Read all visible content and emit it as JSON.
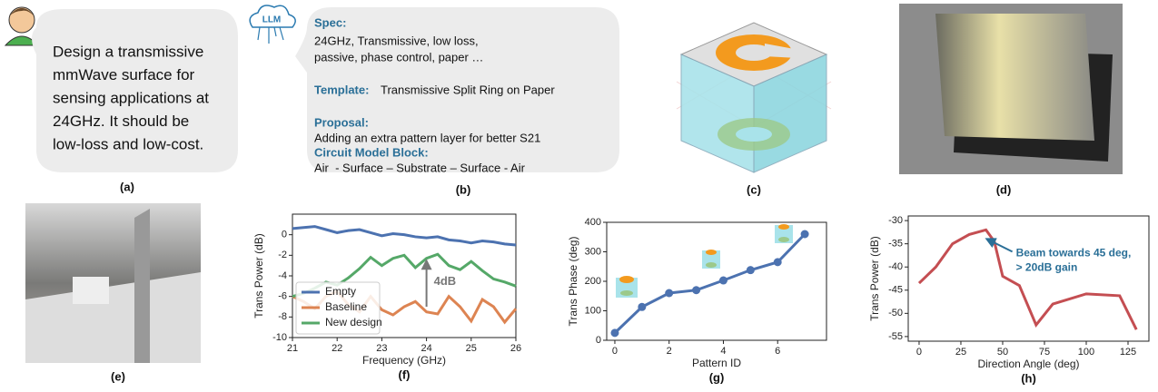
{
  "panel_a": {
    "text": [
      "Design a transmissive",
      "mmWave surface for",
      "sensing applications at",
      "24GHz. It should be",
      "low-loss and low-cost."
    ],
    "label": "(a)"
  },
  "llm_icon": "LLM",
  "panel_b": {
    "spec_heading": "Spec:",
    "spec": [
      "24GHz, Transmissive, low loss,",
      "passive, phase control, paper …"
    ],
    "template_heading": "Template:",
    "template": "Transmissive Split Ring on Paper",
    "proposal_heading": "Proposal:",
    "proposal": "Adding an extra pattern layer for better S21",
    "circuit_heading": "Circuit Model Block:",
    "circuit": "Air  - Surface – Substrate – Surface - Air",
    "label": "(b)"
  },
  "panel_c": {
    "label": "(c)"
  },
  "panel_d": {
    "label": "(d)"
  },
  "panel_e": {
    "label": "(e)"
  },
  "chart_data": [
    {
      "type": "line",
      "label": "(f)",
      "xlabel": "Frequency (GHz)",
      "ylabel": "Trans Power (dB)",
      "x": [
        21,
        21.25,
        21.5,
        21.75,
        22,
        22.25,
        22.5,
        22.75,
        23,
        23.25,
        23.5,
        23.75,
        24,
        24.25,
        24.5,
        24.75,
        25,
        25.25,
        25.5,
        25.75,
        26
      ],
      "series": [
        {
          "name": "Empty",
          "color": "#4c72b0",
          "values": [
            0.6,
            0.7,
            0.8,
            0.5,
            0.2,
            0.4,
            0.5,
            0.2,
            -0.1,
            0.1,
            0.0,
            -0.2,
            -0.3,
            -0.2,
            -0.5,
            -0.6,
            -0.8,
            -0.6,
            -0.7,
            -0.9,
            -1.0
          ]
        },
        {
          "name": "Baseline",
          "color": "#dd8452",
          "values": [
            -6.0,
            -6.5,
            -7.2,
            -6.0,
            -5.5,
            -6.8,
            -7.5,
            -6.0,
            -7.3,
            -7.8,
            -7.0,
            -6.5,
            -7.5,
            -7.7,
            -6.0,
            -7.0,
            -8.4,
            -6.3,
            -7.0,
            -8.5,
            -7.2
          ]
        },
        {
          "name": "New design",
          "color": "#55a868",
          "values": [
            -6.0,
            -5.7,
            -5.2,
            -4.6,
            -4.9,
            -4.2,
            -3.3,
            -2.2,
            -3.0,
            -2.3,
            -2.0,
            -3.2,
            -2.3,
            -1.9,
            -3.0,
            -3.4,
            -2.6,
            -3.5,
            -4.3,
            -4.6,
            -5.0
          ]
        }
      ],
      "xlim": [
        21,
        26
      ],
      "ylim": [
        -10,
        2
      ],
      "xticks": [
        21,
        22,
        23,
        24,
        25,
        26
      ],
      "yticks": [
        0,
        -2,
        -4,
        -6,
        -8,
        -10
      ],
      "legend": "lower left",
      "annotation": "4dB"
    },
    {
      "type": "line",
      "label": "(g)",
      "xlabel": "Pattern ID",
      "ylabel": "Trans Phase (deg)",
      "markers": true,
      "x": [
        0,
        1,
        2,
        3,
        4,
        5,
        6,
        7
      ],
      "series": [
        {
          "color": "#4c72b0",
          "values": [
            25,
            113,
            160,
            170,
            203,
            238,
            265,
            360
          ]
        }
      ],
      "xlim": [
        -0.3,
        7.8
      ],
      "ylim": [
        0,
        400
      ],
      "xticks": [
        0,
        2,
        4,
        6
      ],
      "yticks": [
        0,
        100,
        200,
        300,
        400
      ]
    },
    {
      "type": "line",
      "label": "(h)",
      "xlabel": "Direction Angle (deg)",
      "ylabel": "Trans Power (dB)",
      "x": [
        0,
        10,
        20,
        30,
        40,
        45,
        50,
        60,
        70,
        80,
        100,
        120,
        130
      ],
      "series": [
        {
          "color": "#c44e52",
          "values": [
            -43.5,
            -40,
            -35,
            -33,
            -32,
            -34.5,
            -42,
            -44,
            -52.5,
            -48,
            -45.8,
            -46.2,
            -53.5
          ]
        }
      ],
      "xlim": [
        -6.5,
        137.5
      ],
      "ylim": [
        -56,
        -29
      ],
      "xticks": [
        0,
        25,
        50,
        75,
        100,
        125
      ],
      "yticks": [
        -30,
        -35,
        -40,
        -45,
        -50,
        -55
      ],
      "annotation": [
        "Beam towards 45 deg,",
        "> 20dB gain"
      ]
    }
  ]
}
